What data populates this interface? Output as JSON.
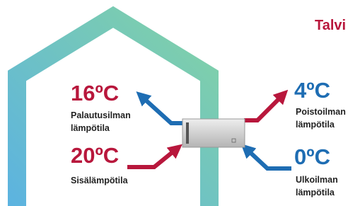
{
  "season": "Talvi",
  "readings": [
    {
      "temperature": "16ºC",
      "label": [
        "Palautusilman",
        "lämpötila"
      ]
    },
    {
      "temperature": "20ºC",
      "label": [
        "Sisälämpötila"
      ]
    },
    {
      "temperature": "4ºC",
      "label": [
        "Poistoilman",
        "lämpötila"
      ]
    },
    {
      "temperature": "0ºC",
      "label": [
        "Ulkoilman",
        "lämpötila"
      ]
    }
  ]
}
